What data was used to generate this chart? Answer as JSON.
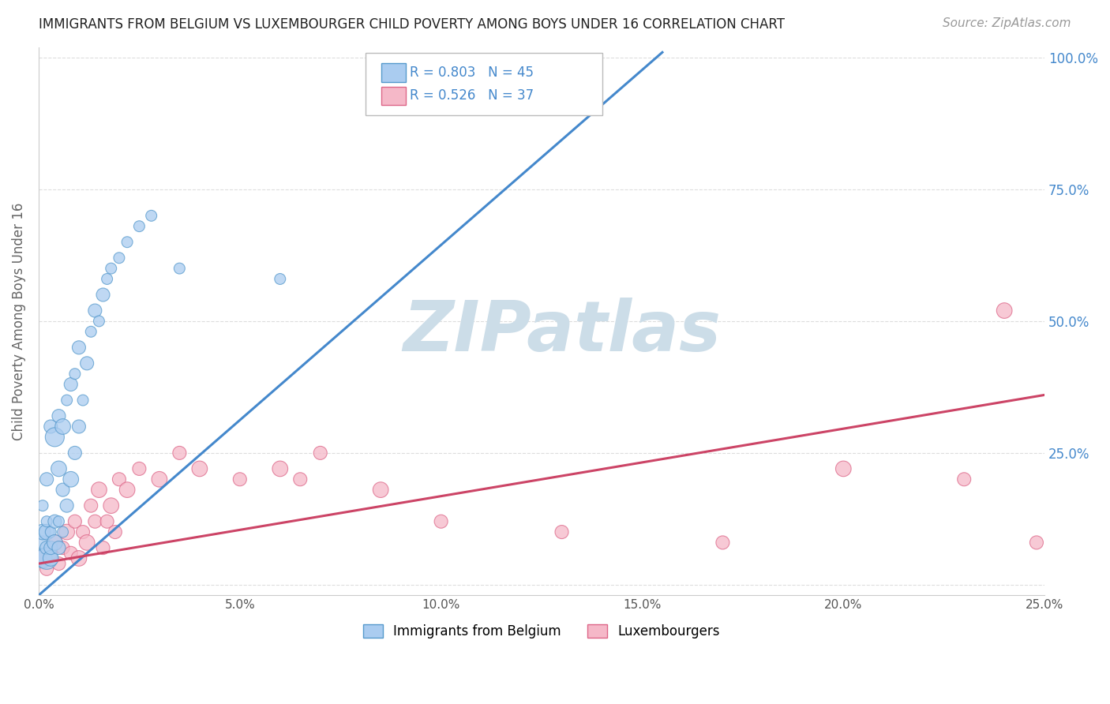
{
  "title": "IMMIGRANTS FROM BELGIUM VS LUXEMBOURGER CHILD POVERTY AMONG BOYS UNDER 16 CORRELATION CHART",
  "source": "Source: ZipAtlas.com",
  "xlabel_blue": "Immigrants from Belgium",
  "xlabel_pink": "Luxembourgers",
  "ylabel": "Child Poverty Among Boys Under 16",
  "xlim": [
    0.0,
    0.25
  ],
  "ylim": [
    -0.02,
    1.02
  ],
  "xticks": [
    0.0,
    0.05,
    0.1,
    0.15,
    0.2,
    0.25
  ],
  "yticks": [
    0.0,
    0.25,
    0.5,
    0.75,
    1.0
  ],
  "xtick_labels": [
    "0.0%",
    "5.0%",
    "10.0%",
    "15.0%",
    "20.0%",
    "25.0%"
  ],
  "ytick_labels_right": [
    "",
    "25.0%",
    "50.0%",
    "75.0%",
    "100.0%"
  ],
  "blue_R": 0.803,
  "blue_N": 45,
  "pink_R": 0.526,
  "pink_N": 37,
  "blue_color": "#aaccf0",
  "blue_edge_color": "#5599cc",
  "blue_line_color": "#4488cc",
  "pink_color": "#f5b8c8",
  "pink_edge_color": "#dd6688",
  "pink_line_color": "#cc4466",
  "label_color": "#4488cc",
  "watermark_color": "#ccdde8",
  "background_color": "#ffffff",
  "grid_color": "#dddddd",
  "blue_line_x0": 0.0,
  "blue_line_y0": -0.02,
  "blue_line_x1": 0.155,
  "blue_line_y1": 1.01,
  "pink_line_x0": 0.0,
  "pink_line_y0": 0.04,
  "pink_line_x1": 0.25,
  "pink_line_y1": 0.36,
  "blue_scatter_x": [
    0.001,
    0.001,
    0.001,
    0.001,
    0.002,
    0.002,
    0.002,
    0.002,
    0.002,
    0.003,
    0.003,
    0.003,
    0.003,
    0.004,
    0.004,
    0.004,
    0.005,
    0.005,
    0.005,
    0.005,
    0.006,
    0.006,
    0.006,
    0.007,
    0.007,
    0.008,
    0.008,
    0.009,
    0.009,
    0.01,
    0.01,
    0.011,
    0.012,
    0.013,
    0.014,
    0.015,
    0.016,
    0.017,
    0.018,
    0.02,
    0.022,
    0.025,
    0.028,
    0.035,
    0.06
  ],
  "blue_scatter_y": [
    0.05,
    0.08,
    0.1,
    0.15,
    0.05,
    0.07,
    0.1,
    0.12,
    0.2,
    0.05,
    0.07,
    0.1,
    0.3,
    0.08,
    0.12,
    0.28,
    0.07,
    0.12,
    0.22,
    0.32,
    0.1,
    0.18,
    0.3,
    0.15,
    0.35,
    0.2,
    0.38,
    0.25,
    0.4,
    0.3,
    0.45,
    0.35,
    0.42,
    0.48,
    0.52,
    0.5,
    0.55,
    0.58,
    0.6,
    0.62,
    0.65,
    0.68,
    0.7,
    0.6,
    0.58
  ],
  "blue_scatter_size": [
    300,
    150,
    200,
    100,
    400,
    150,
    200,
    100,
    150,
    200,
    150,
    100,
    150,
    200,
    150,
    300,
    150,
    100,
    200,
    150,
    100,
    150,
    200,
    150,
    100,
    200,
    150,
    150,
    100,
    150,
    150,
    100,
    150,
    100,
    150,
    100,
    150,
    100,
    100,
    100,
    100,
    100,
    100,
    100,
    100
  ],
  "pink_scatter_x": [
    0.001,
    0.002,
    0.003,
    0.004,
    0.005,
    0.006,
    0.007,
    0.008,
    0.009,
    0.01,
    0.011,
    0.012,
    0.013,
    0.014,
    0.015,
    0.016,
    0.017,
    0.018,
    0.019,
    0.02,
    0.022,
    0.025,
    0.03,
    0.035,
    0.04,
    0.05,
    0.06,
    0.065,
    0.07,
    0.085,
    0.1,
    0.13,
    0.17,
    0.2,
    0.23,
    0.24,
    0.248
  ],
  "pink_scatter_y": [
    0.05,
    0.03,
    0.06,
    0.08,
    0.04,
    0.07,
    0.1,
    0.06,
    0.12,
    0.05,
    0.1,
    0.08,
    0.15,
    0.12,
    0.18,
    0.07,
    0.12,
    0.15,
    0.1,
    0.2,
    0.18,
    0.22,
    0.2,
    0.25,
    0.22,
    0.2,
    0.22,
    0.2,
    0.25,
    0.18,
    0.12,
    0.1,
    0.08,
    0.22,
    0.2,
    0.52,
    0.08
  ],
  "pink_scatter_size": [
    200,
    150,
    150,
    200,
    150,
    150,
    200,
    150,
    150,
    200,
    150,
    200,
    150,
    150,
    200,
    150,
    150,
    200,
    150,
    150,
    200,
    150,
    200,
    150,
    200,
    150,
    200,
    150,
    150,
    200,
    150,
    150,
    150,
    200,
    150,
    200,
    150
  ]
}
